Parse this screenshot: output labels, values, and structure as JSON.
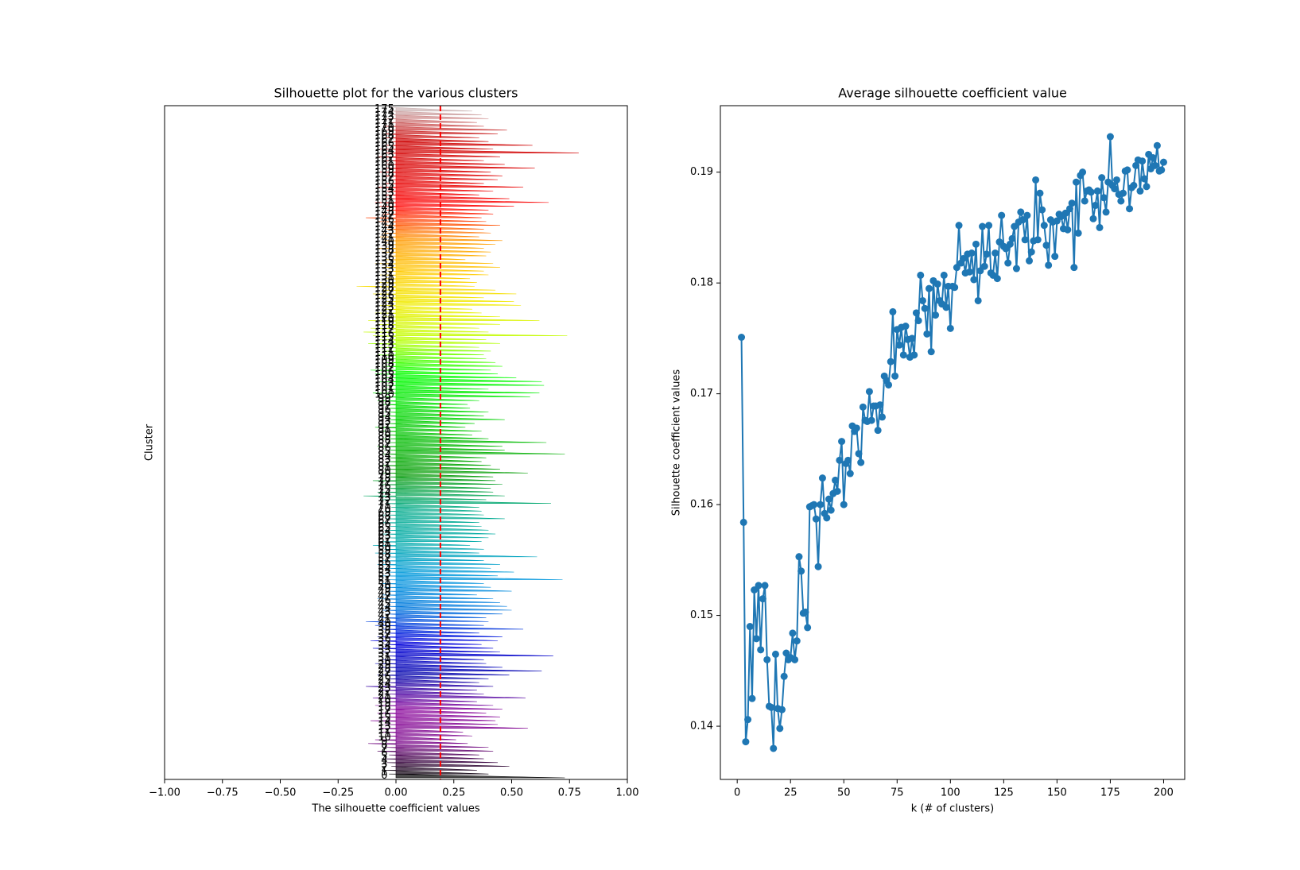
{
  "chart_data": [
    {
      "type": "silhouette",
      "title": "Silhouette plot for the various clusters",
      "xlabel": "The silhouette coefficient values",
      "ylabel": "Cluster",
      "xlim": [
        -1,
        1
      ],
      "xticks": [
        {
          "value": -1,
          "label": "−1.00"
        },
        {
          "value": -0.75,
          "label": "−0.75"
        },
        {
          "value": -0.5,
          "label": "−0.50"
        },
        {
          "value": -0.25,
          "label": "−0.25"
        },
        {
          "value": 0,
          "label": "0.00"
        },
        {
          "value": 0.25,
          "label": "0.25"
        },
        {
          "value": 0.5,
          "label": "0.50"
        },
        {
          "value": 0.75,
          "label": "0.75"
        },
        {
          "value": 1,
          "label": "1.00"
        }
      ],
      "colormap": "nipy_spectral",
      "average": 0.192,
      "average_color": "#ff0000",
      "categories": [
        0,
        1,
        2,
        3,
        4,
        5,
        6,
        7,
        8,
        9,
        10,
        11,
        12,
        13,
        14,
        15,
        16,
        17,
        18,
        19,
        20,
        21,
        22,
        23,
        24,
        25,
        26,
        27,
        28,
        29,
        30,
        31,
        32,
        33,
        34,
        35,
        36,
        37,
        38,
        39,
        40,
        41,
        42,
        43,
        44,
        45,
        46,
        47,
        48,
        49,
        50,
        51,
        52,
        53,
        54,
        55,
        56,
        57,
        58,
        59,
        60,
        61,
        62,
        63,
        64,
        65,
        66,
        67,
        68,
        69,
        70,
        71,
        72,
        73,
        74,
        75,
        76,
        77,
        78,
        79,
        80,
        81,
        82,
        83,
        84,
        85,
        86,
        87,
        88,
        89,
        90,
        91,
        92,
        93,
        94,
        95,
        96,
        97,
        98,
        99,
        100,
        101,
        102,
        103,
        104,
        105,
        106,
        107,
        108,
        109,
        110,
        111,
        112,
        113,
        114,
        115,
        116,
        117,
        118,
        119,
        120,
        121,
        122,
        123,
        124,
        125,
        126,
        127,
        128,
        129,
        130,
        131,
        132,
        133,
        134,
        135,
        136,
        137,
        138,
        139,
        140,
        141,
        142,
        143,
        144,
        145,
        146,
        147,
        148,
        149,
        150,
        151,
        152,
        153,
        154,
        155,
        156,
        157,
        158,
        159,
        160,
        161,
        162,
        163,
        164,
        165,
        166,
        167,
        168,
        169,
        170,
        171,
        172,
        173,
        174,
        175
      ],
      "max_values": [
        0.73,
        0.4,
        0.35,
        0.49,
        0.44,
        0.38,
        0.36,
        0.42,
        0.4,
        0.31,
        0.26,
        0.33,
        0.29,
        0.57,
        0.44,
        0.43,
        0.45,
        0.39,
        0.46,
        0.42,
        0.35,
        0.56,
        0.38,
        0.35,
        0.42,
        0.36,
        0.4,
        0.49,
        0.63,
        0.46,
        0.39,
        0.38,
        0.68,
        0.45,
        0.42,
        0.37,
        0.44,
        0.46,
        0.36,
        0.55,
        0.38,
        0.4,
        0.39,
        0.46,
        0.5,
        0.48,
        0.45,
        0.42,
        0.35,
        0.5,
        0.41,
        0.38,
        0.72,
        0.44,
        0.51,
        0.41,
        0.45,
        0.38,
        0.61,
        0.36,
        0.38,
        0.32,
        0.37,
        0.4,
        0.43,
        0.4,
        0.37,
        0.36,
        0.47,
        0.38,
        0.37,
        0.36,
        0.67,
        0.39,
        0.47,
        0.42,
        0.41,
        0.46,
        0.43,
        0.42,
        0.57,
        0.45,
        0.41,
        0.37,
        0.39,
        0.73,
        0.47,
        0.46,
        0.65,
        0.4,
        0.33,
        0.37,
        0.3,
        0.34,
        0.47,
        0.38,
        0.4,
        0.32,
        0.31,
        0.36,
        0.58,
        0.62,
        0.4,
        0.64,
        0.63,
        0.52,
        0.44,
        0.41,
        0.46,
        0.43,
        0.39,
        0.38,
        0.41,
        0.36,
        0.45,
        0.39,
        0.74,
        0.4,
        0.36,
        0.45,
        0.62,
        0.45,
        0.37,
        0.33,
        0.54,
        0.51,
        0.38,
        0.52,
        0.43,
        0.34,
        0.35,
        0.32,
        0.4,
        0.38,
        0.45,
        0.42,
        0.3,
        0.39,
        0.41,
        0.38,
        0.43,
        0.46,
        0.36,
        0.41,
        0.38,
        0.45,
        0.39,
        0.37,
        0.42,
        0.4,
        0.51,
        0.66,
        0.49,
        0.36,
        0.42,
        0.55,
        0.38,
        0.44,
        0.46,
        0.41,
        0.6,
        0.47,
        0.38,
        0.45,
        0.79,
        0.42,
        0.59,
        0.4,
        0.36,
        0.44,
        0.48,
        0.38,
        0.35,
        0.4,
        0.37,
        0.33
      ],
      "min_values": [
        -0.03,
        -0.05,
        -0.02,
        -0.04,
        -0.06,
        -0.03,
        -0.08,
        -0.05,
        -0.12,
        -0.09,
        -0.04,
        -0.06,
        -0.07,
        -0.05,
        -0.11,
        -0.06,
        -0.08,
        -0.04,
        -0.09,
        -0.06,
        -0.1,
        -0.05,
        -0.07,
        -0.13,
        -0.06,
        -0.04,
        -0.08,
        -0.05,
        -0.07,
        -0.09,
        -0.06,
        -0.04,
        -0.07,
        -0.1,
        -0.05,
        -0.11,
        -0.08,
        -0.05,
        -0.06,
        -0.09,
        -0.13,
        -0.07,
        -0.04,
        -0.06,
        -0.05,
        -0.03,
        -0.08,
        -0.06,
        -0.04,
        -0.05,
        -0.07,
        -0.03,
        -0.06,
        -0.04,
        -0.05,
        -0.08,
        -0.06,
        -0.04,
        -0.09,
        -0.05,
        -0.1,
        -0.07,
        -0.04,
        -0.06,
        -0.05,
        -0.03,
        -0.07,
        -0.04,
        -0.06,
        -0.05,
        -0.02,
        -0.04,
        -0.06,
        -0.14,
        -0.08,
        -0.05,
        -0.07,
        -0.1,
        -0.04,
        -0.06,
        -0.05,
        -0.07,
        -0.04,
        -0.03,
        -0.06,
        -0.05,
        -0.08,
        -0.04,
        -0.06,
        -0.05,
        -0.07,
        -0.09,
        -0.04,
        -0.03,
        -0.06,
        -0.05,
        -0.04,
        -0.06,
        -0.08,
        -0.05,
        -0.1,
        -0.06,
        -0.04,
        -0.07,
        -0.05,
        -0.09,
        -0.11,
        -0.06,
        -0.04,
        -0.05,
        -0.08,
        -0.06,
        -0.09,
        -0.12,
        -0.07,
        -0.1,
        -0.14,
        -0.11,
        -0.08,
        -0.12,
        -0.06,
        -0.09,
        -0.05,
        -0.07,
        -0.04,
        -0.08,
        -0.1,
        -0.06,
        -0.17,
        -0.08,
        -0.05,
        -0.07,
        -0.04,
        -0.06,
        -0.09,
        -0.05,
        -0.03,
        -0.06,
        -0.08,
        -0.04,
        -0.05,
        -0.07,
        -0.06,
        -0.04,
        -0.05,
        -0.08,
        -0.13,
        -0.06,
        -0.04,
        -0.07,
        -0.09,
        -0.05,
        -0.06,
        -0.04,
        -0.08,
        -0.05,
        -0.03,
        -0.06,
        -0.07,
        -0.05,
        -0.04,
        -0.06,
        -0.08,
        -0.05,
        -0.07,
        -0.04,
        -0.03,
        -0.05,
        -0.06,
        -0.04,
        -0.05,
        -0.03,
        -0.04,
        -0.02,
        -0.03,
        -0.02
      ]
    },
    {
      "type": "line",
      "title": "Average silhouette coefficient value",
      "xlabel": "k (# of clusters)",
      "ylabel": "Silhouette coefficient values",
      "color": "#1f77b4",
      "xlim": [
        -7.9,
        209.9
      ],
      "xticks": [
        0,
        25,
        50,
        75,
        100,
        125,
        150,
        175,
        200
      ],
      "ylim": [
        0.1352,
        0.196
      ],
      "yticks": [
        0.14,
        0.15,
        0.16,
        0.17,
        0.18,
        0.19
      ],
      "x": [
        2,
        3,
        4,
        5,
        6,
        7,
        8,
        9,
        10,
        11,
        12,
        13,
        14,
        15,
        16,
        17,
        18,
        19,
        20,
        21,
        22,
        23,
        24,
        25,
        26,
        27,
        28,
        29,
        30,
        31,
        32,
        33,
        34,
        35,
        36,
        37,
        38,
        39,
        40,
        41,
        42,
        43,
        44,
        45,
        46,
        47,
        48,
        49,
        50,
        51,
        52,
        53,
        54,
        55,
        56,
        57,
        58,
        59,
        60,
        61,
        62,
        63,
        64,
        65,
        66,
        67,
        68,
        69,
        70,
        71,
        72,
        73,
        74,
        75,
        76,
        77,
        78,
        79,
        80,
        81,
        82,
        83,
        84,
        85,
        86,
        87,
        88,
        89,
        90,
        91,
        92,
        93,
        94,
        95,
        96,
        97,
        98,
        99,
        100,
        101,
        102,
        103,
        104,
        105,
        106,
        107,
        108,
        109,
        110,
        111,
        112,
        113,
        114,
        115,
        116,
        117,
        118,
        119,
        120,
        121,
        122,
        123,
        124,
        125,
        126,
        127,
        128,
        129,
        130,
        131,
        132,
        133,
        134,
        135,
        136,
        137,
        138,
        139,
        140,
        141,
        142,
        143,
        144,
        145,
        146,
        147,
        148,
        149,
        150,
        151,
        152,
        153,
        154,
        155,
        156,
        157,
        158,
        159,
        160,
        161,
        162,
        163,
        164,
        165,
        166,
        167,
        168,
        169,
        170,
        171,
        172,
        173,
        174,
        175,
        176,
        177,
        178,
        179,
        180,
        181,
        182,
        183,
        184,
        185,
        186,
        187,
        188,
        189,
        190,
        191,
        192,
        193,
        194,
        195,
        196,
        197,
        198,
        199,
        200
      ],
      "values": [
        0.1751,
        0.1584,
        0.1386,
        0.1406,
        0.149,
        0.1425,
        0.1523,
        0.1479,
        0.1527,
        0.1469,
        0.1515,
        0.1527,
        0.146,
        0.1418,
        0.1417,
        0.138,
        0.1465,
        0.1416,
        0.1398,
        0.1415,
        0.1445,
        0.1466,
        0.146,
        0.1462,
        0.1484,
        0.146,
        0.1477,
        0.1553,
        0.154,
        0.1502,
        0.1503,
        0.1489,
        0.1598,
        0.1599,
        0.16,
        0.1587,
        0.1544,
        0.16,
        0.1624,
        0.1592,
        0.1588,
        0.1605,
        0.1595,
        0.161,
        0.1622,
        0.1612,
        0.164,
        0.1657,
        0.16,
        0.1637,
        0.164,
        0.1628,
        0.1671,
        0.1666,
        0.1669,
        0.1646,
        0.1638,
        0.1688,
        0.1676,
        0.1675,
        0.1702,
        0.1676,
        0.1689,
        0.1689,
        0.1667,
        0.169,
        0.1679,
        0.1716,
        0.1712,
        0.1708,
        0.1729,
        0.1774,
        0.1716,
        0.1758,
        0.1744,
        0.176,
        0.1735,
        0.1761,
        0.1749,
        0.1733,
        0.175,
        0.1735,
        0.1773,
        0.1766,
        0.1807,
        0.1784,
        0.1777,
        0.1754,
        0.1795,
        0.1738,
        0.1802,
        0.1771,
        0.1799,
        0.1784,
        0.1781,
        0.1807,
        0.1778,
        0.1797,
        0.1759,
        0.1797,
        0.1796,
        0.1814,
        0.1852,
        0.1818,
        0.1822,
        0.1809,
        0.1826,
        0.181,
        0.1827,
        0.1803,
        0.1835,
        0.1784,
        0.1811,
        0.1851,
        0.1815,
        0.1826,
        0.1852,
        0.1809,
        0.1807,
        0.1827,
        0.1804,
        0.1837,
        0.1861,
        0.1833,
        0.1831,
        0.1818,
        0.1835,
        0.184,
        0.1851,
        0.1813,
        0.1855,
        0.1864,
        0.1857,
        0.1839,
        0.1861,
        0.182,
        0.1828,
        0.1838,
        0.1893,
        0.1839,
        0.1881,
        0.1866,
        0.1852,
        0.1834,
        0.1816,
        0.1857,
        0.1855,
        0.1824,
        0.1856,
        0.1862,
        0.186,
        0.1849,
        0.1863,
        0.1848,
        0.1867,
        0.1872,
        0.1814,
        0.1891,
        0.1845,
        0.1897,
        0.19,
        0.1874,
        0.1883,
        0.1884,
        0.1882,
        0.1858,
        0.187,
        0.1883,
        0.185,
        0.1895,
        0.1877,
        0.1864,
        0.1891,
        0.1932,
        0.1888,
        0.1885,
        0.1893,
        0.188,
        0.1874,
        0.1881,
        0.1901,
        0.1902,
        0.1867,
        0.1886,
        0.1888,
        0.1906,
        0.1911,
        0.1883,
        0.191,
        0.1894,
        0.1887,
        0.1916,
        0.1903,
        0.1913,
        0.1906,
        0.1924,
        0.1901,
        0.1902,
        0.1909
      ]
    }
  ]
}
